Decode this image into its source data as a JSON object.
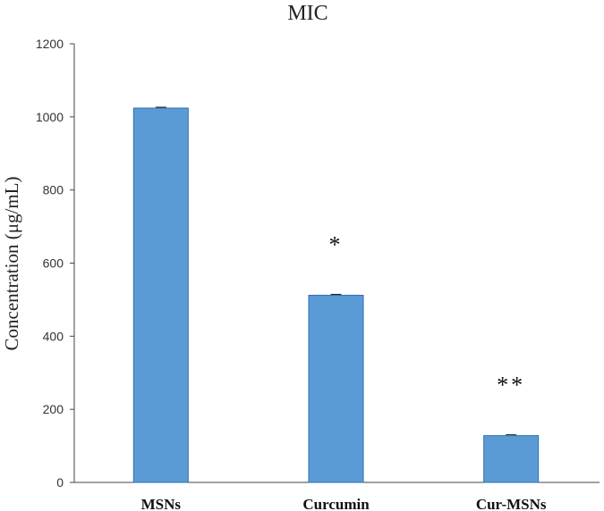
{
  "chart_data": {
    "type": "bar",
    "title": "MIC",
    "xlabel": "",
    "ylabel": "Concentration (μg/mL)",
    "categories": [
      "MSNs",
      "Curcumin",
      "Cur-MSNs"
    ],
    "values": [
      1024,
      512,
      128
    ],
    "annotations": [
      "",
      "*",
      "**"
    ],
    "ylim": [
      0,
      1200
    ],
    "yticks": [
      0,
      200,
      400,
      600,
      800,
      1000,
      1200
    ],
    "grid": false,
    "legend": "none",
    "bar_color": "#5b9bd5",
    "bar_edge_color": "#2e6fb5"
  }
}
